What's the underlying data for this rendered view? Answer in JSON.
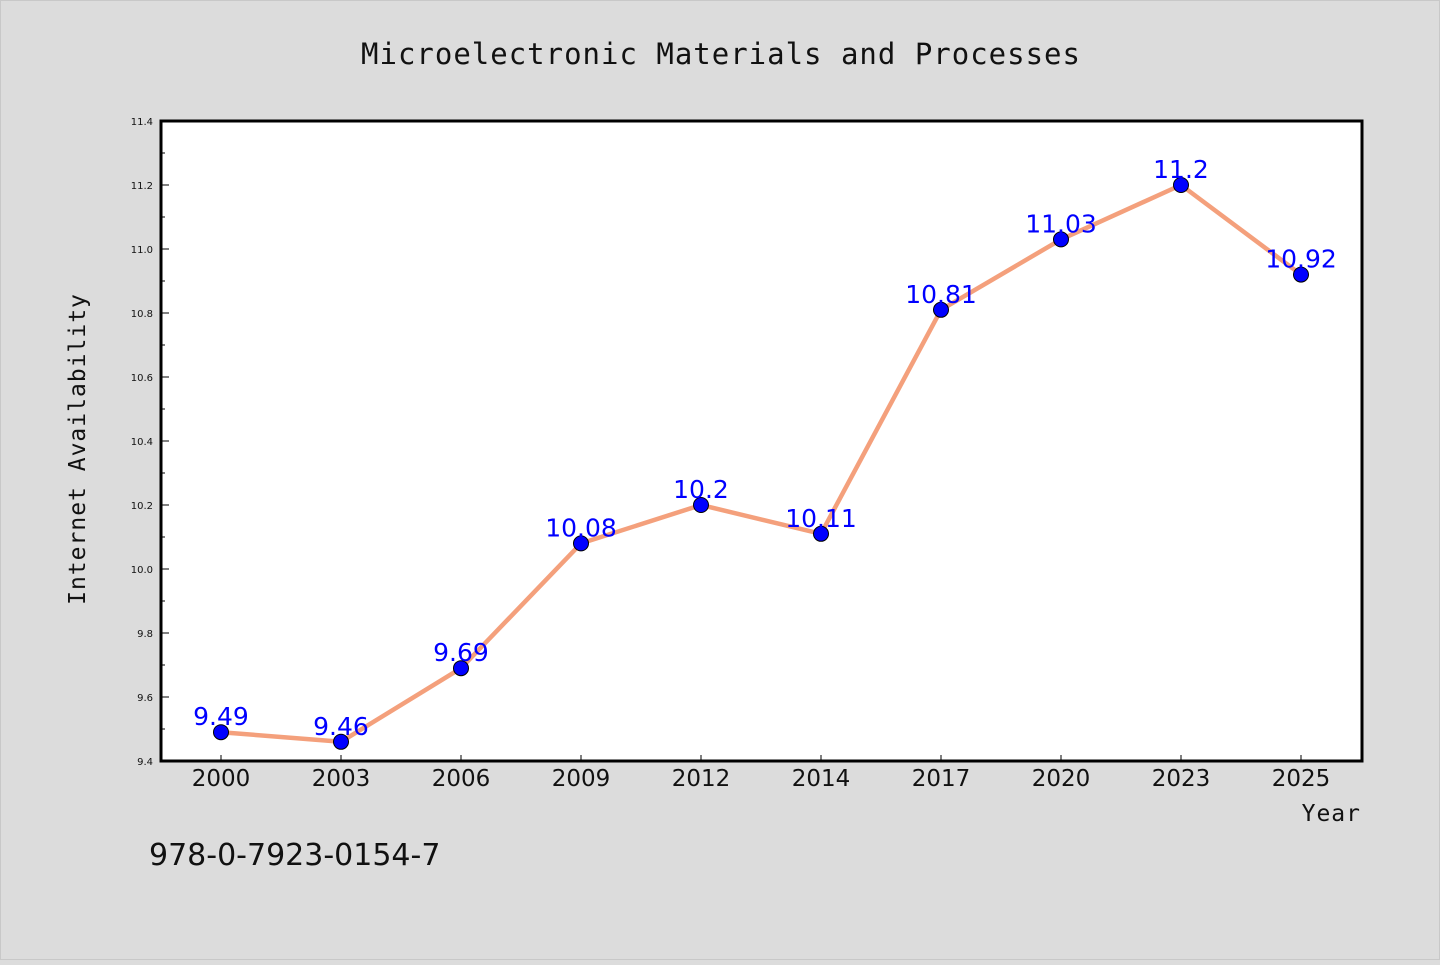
{
  "chart_data": {
    "type": "line",
    "title": "Microelectronic Materials and Processes",
    "xlabel": "Year",
    "ylabel": "Internet Availability",
    "categories": [
      "2000",
      "2003",
      "2006",
      "2009",
      "2012",
      "2014",
      "2017",
      "2020",
      "2023",
      "2025"
    ],
    "series": [
      {
        "values": [
          9.49,
          9.46,
          9.69,
          10.08,
          10.2,
          10.11,
          10.81,
          11.03,
          11.2,
          10.92
        ],
        "data_labels": [
          "9.49",
          "9.46",
          "9.69",
          "10.08",
          "10.2",
          "10.11",
          "10.81",
          "11.03",
          "11.2",
          "10.92"
        ]
      }
    ],
    "ylim": [
      9.4,
      11.4
    ],
    "yticks": [
      "9.4",
      "9.6",
      "9.8",
      "10.0",
      "10.2",
      "10.4",
      "10.6",
      "10.8",
      "11.0",
      "11.2",
      "11.4"
    ],
    "grid": false,
    "line_color": "#f4a07c",
    "marker_color": "#0000ff",
    "label_color": "#0000ff",
    "plot_background": "#ffffff",
    "figure_background": "#dcdcdc"
  },
  "footer": {
    "isbn": "978-0-7923-0154-7"
  }
}
